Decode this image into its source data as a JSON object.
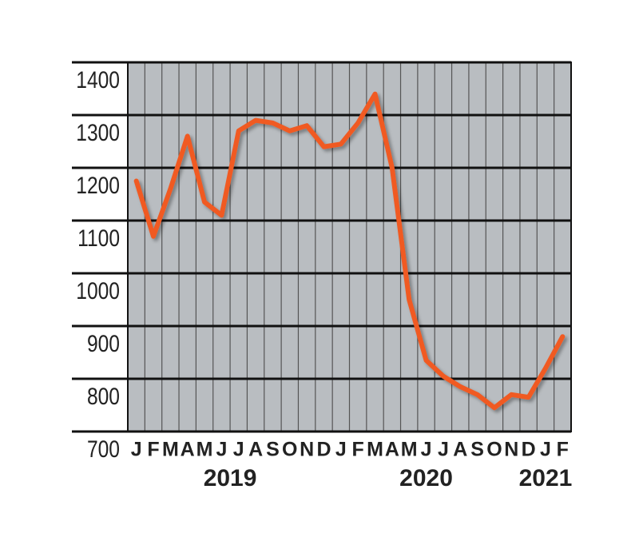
{
  "chart_data": {
    "type": "line",
    "categories": [
      "J",
      "F",
      "M",
      "A",
      "M",
      "J",
      "J",
      "A",
      "S",
      "O",
      "N",
      "D",
      "J",
      "F",
      "M",
      "A",
      "M",
      "J",
      "J",
      "A",
      "S",
      "O",
      "N",
      "D",
      "J",
      "F"
    ],
    "values": [
      1175,
      1070,
      1160,
      1260,
      1135,
      1110,
      1270,
      1290,
      1285,
      1270,
      1280,
      1240,
      1245,
      1285,
      1340,
      1200,
      950,
      835,
      805,
      785,
      770,
      745,
      770,
      765,
      820,
      880
    ],
    "color": "#f05a24",
    "ylim": [
      700,
      1400
    ],
    "yticks": [
      700,
      800,
      900,
      1000,
      1100,
      1200,
      1300,
      1400
    ],
    "grid": true,
    "years": [
      "2019",
      "2020",
      "2021"
    ]
  }
}
